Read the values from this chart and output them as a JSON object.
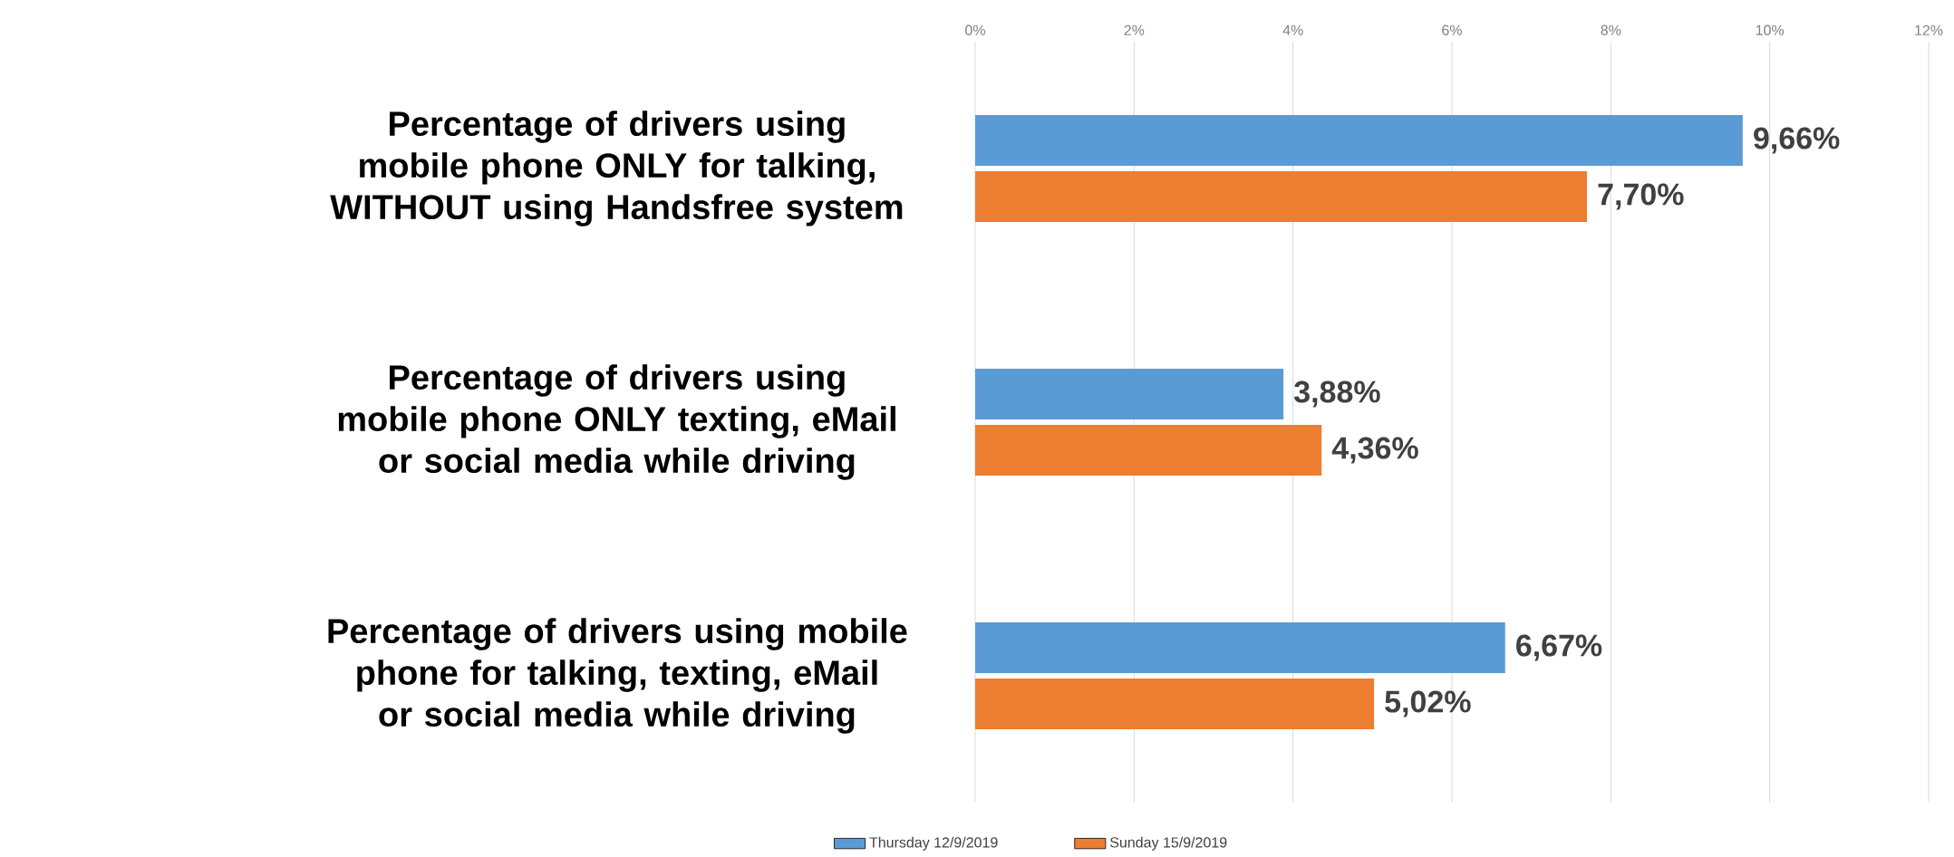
{
  "chart_data": {
    "type": "bar",
    "orientation": "horizontal",
    "categories": [
      "Percentage of drivers using mobile phone ONLY for talking, WITHOUT using Handsfree system",
      "Percentage of drivers using mobile phone ONLY texting, eMail or social media while driving",
      "Percentage of drivers using mobile phone for talking, texting, eMail or social media while driving"
    ],
    "series": [
      {
        "name": "Thursday 12/9/2019",
        "color": "#5b9bd5",
        "values": [
          9.66,
          3.88,
          6.67
        ],
        "value_labels": [
          "9,66%",
          "3,88%",
          "6,67%"
        ]
      },
      {
        "name": "Sunday 15/9/2019",
        "color": "#ed7d31",
        "values": [
          7.7,
          4.36,
          5.02
        ],
        "value_labels": [
          "7,70%",
          "4,36%",
          "5,02%"
        ]
      }
    ],
    "xlim": [
      0,
      12
    ],
    "xticks": [
      {
        "value": 0,
        "label": "0%"
      },
      {
        "value": 2,
        "label": "2%"
      },
      {
        "value": 4,
        "label": "4%"
      },
      {
        "value": 6,
        "label": "6%"
      },
      {
        "value": 8,
        "label": "8%"
      },
      {
        "value": 10,
        "label": "10%"
      },
      {
        "value": 12,
        "label": "12%"
      }
    ],
    "grid": "x",
    "legend": "bottom"
  }
}
